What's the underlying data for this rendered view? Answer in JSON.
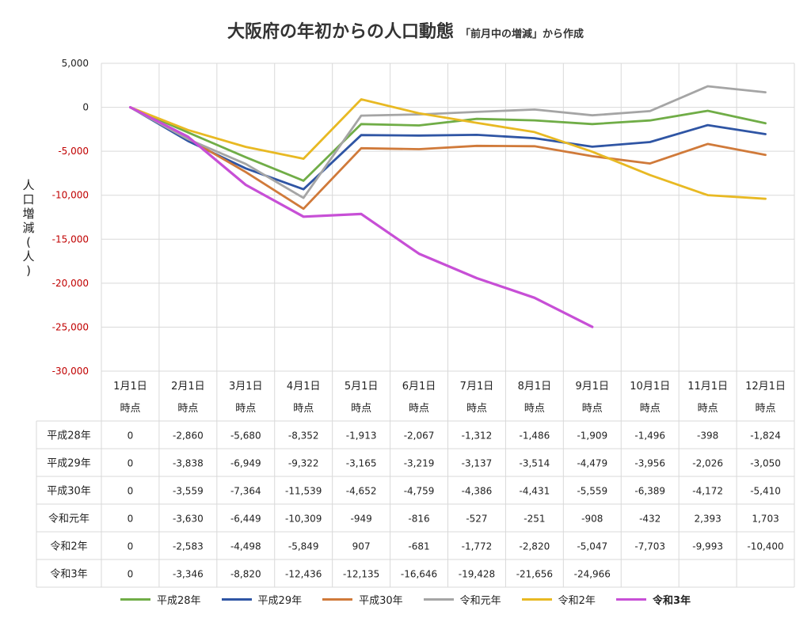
{
  "chart_data": {
    "type": "line",
    "title": "大阪府の年初からの人口動態",
    "subtitle": "「前月中の増減」から作成",
    "ylabel": "人口増減(人)",
    "ylim": [
      -30000,
      5000
    ],
    "yticks": [
      5000,
      0,
      -5000,
      -10000,
      -15000,
      -20000,
      -25000,
      -30000
    ],
    "ytick_labels": [
      "5,000",
      "0",
      "-5,000",
      "-10,000",
      "-15,000",
      "-20,000",
      "-25,000",
      "-30,000"
    ],
    "categories": [
      [
        "1月1日",
        "時点"
      ],
      [
        "2月1日",
        "時点"
      ],
      [
        "3月1日",
        "時点"
      ],
      [
        "4月1日",
        "時点"
      ],
      [
        "5月1日",
        "時点"
      ],
      [
        "6月1日",
        "時点"
      ],
      [
        "7月1日",
        "時点"
      ],
      [
        "8月1日",
        "時点"
      ],
      [
        "9月1日",
        "時点"
      ],
      [
        "10月1日",
        "時点"
      ],
      [
        "11月1日",
        "時点"
      ],
      [
        "12月1日",
        "時点"
      ]
    ],
    "grid": true,
    "legend_position": "bottom",
    "series": [
      {
        "name": "平成28年",
        "color": "#70ad47",
        "values": [
          0,
          -2860,
          -5680,
          -8352,
          -1913,
          -2067,
          -1312,
          -1486,
          -1909,
          -1496,
          -398,
          -1824
        ],
        "labels": [
          "0",
          "-2,860",
          "-5,680",
          "-8,352",
          "-1,913",
          "-2,067",
          "-1,312",
          "-1,486",
          "-1,909",
          "-1,496",
          "-398",
          "-1,824"
        ]
      },
      {
        "name": "平成29年",
        "color": "#2f55a4",
        "values": [
          0,
          -3838,
          -6949,
          -9322,
          -3165,
          -3219,
          -3137,
          -3514,
          -4479,
          -3956,
          -2026,
          -3050
        ],
        "labels": [
          "0",
          "-3,838",
          "-6,949",
          "-9,322",
          "-3,165",
          "-3,219",
          "-3,137",
          "-3,514",
          "-4,479",
          "-3,956",
          "-2,026",
          "-3,050"
        ]
      },
      {
        "name": "平成30年",
        "color": "#d07a3a",
        "values": [
          0,
          -3559,
          -7364,
          -11539,
          -4652,
          -4759,
          -4386,
          -4431,
          -5559,
          -6389,
          -4172,
          -5410
        ],
        "labels": [
          "0",
          "-3,559",
          "-7,364",
          "-11,539",
          "-4,652",
          "-4,759",
          "-4,386",
          "-4,431",
          "-5,559",
          "-6,389",
          "-4,172",
          "-5,410"
        ]
      },
      {
        "name": "令和元年",
        "color": "#a5a5a5",
        "values": [
          0,
          -3630,
          -6449,
          -10309,
          -949,
          -816,
          -527,
          -251,
          -908,
          -432,
          2393,
          1703
        ],
        "labels": [
          "0",
          "-3,630",
          "-6,449",
          "-10,309",
          "-949",
          "-816",
          "-527",
          "-251",
          "-908",
          "-432",
          "2,393",
          "1,703"
        ]
      },
      {
        "name": "令和2年",
        "color": "#e8b923",
        "values": [
          0,
          -2583,
          -4498,
          -5849,
          907,
          -681,
          -1772,
          -2820,
          -5047,
          -7703,
          -9993,
          -10400
        ],
        "labels": [
          "0",
          "-2,583",
          "-4,498",
          "-5,849",
          "907",
          "-681",
          "-1,772",
          "-2,820",
          "-5,047",
          "-7,703",
          "-9,993",
          "-10,400"
        ]
      },
      {
        "name": "令和3年",
        "color": "#c74fd6",
        "bold": true,
        "values": [
          0,
          -3346,
          -8820,
          -12436,
          -12135,
          -16646,
          -19428,
          -21656,
          -24966,
          null,
          null,
          null
        ],
        "labels": [
          "0",
          "-3,346",
          "-8,820",
          "-12,436",
          "-12,135",
          "-16,646",
          "-19,428",
          "-21,656",
          "-24,966",
          "",
          "",
          ""
        ]
      }
    ]
  }
}
